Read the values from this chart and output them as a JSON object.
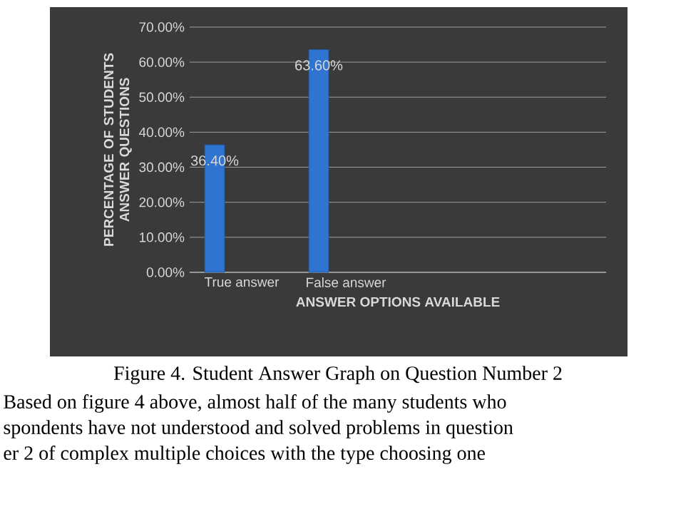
{
  "chart_data": {
    "type": "bar",
    "xlabel": "ANSWER OPTIONS AVAILABLE",
    "ylabel": "PERCENTAGE OF STUDENTS ANSWER QUESTIONS",
    "categories": [
      "True answer",
      "False answer",
      null,
      null
    ],
    "values": [
      36.4,
      63.6,
      null,
      null
    ],
    "value_labels": [
      "36.40%",
      "63.60%",
      null,
      null
    ],
    "color": "#2f74d0",
    "ylim": [
      0,
      70
    ],
    "yticks": [
      {
        "value": 0,
        "label": "0.00%"
      },
      {
        "value": 10,
        "label": "10.00%"
      },
      {
        "value": 20,
        "label": "20.00%"
      },
      {
        "value": 30,
        "label": "30.00%"
      },
      {
        "value": 40,
        "label": "40.00%"
      },
      {
        "value": 50,
        "label": "50.00%"
      },
      {
        "value": 60,
        "label": "60.00%"
      },
      {
        "value": 70,
        "label": "70.00%"
      }
    ],
    "grid": "y",
    "annotations": [
      "Figure 4. Student Answer Graph on Question Number 2",
      "Based on figure 4 above, almost half of the many students who",
      "spondents have not understood and solved problems in question",
      "er 2 of complex multiple choices with the type choosing one"
    ]
  }
}
